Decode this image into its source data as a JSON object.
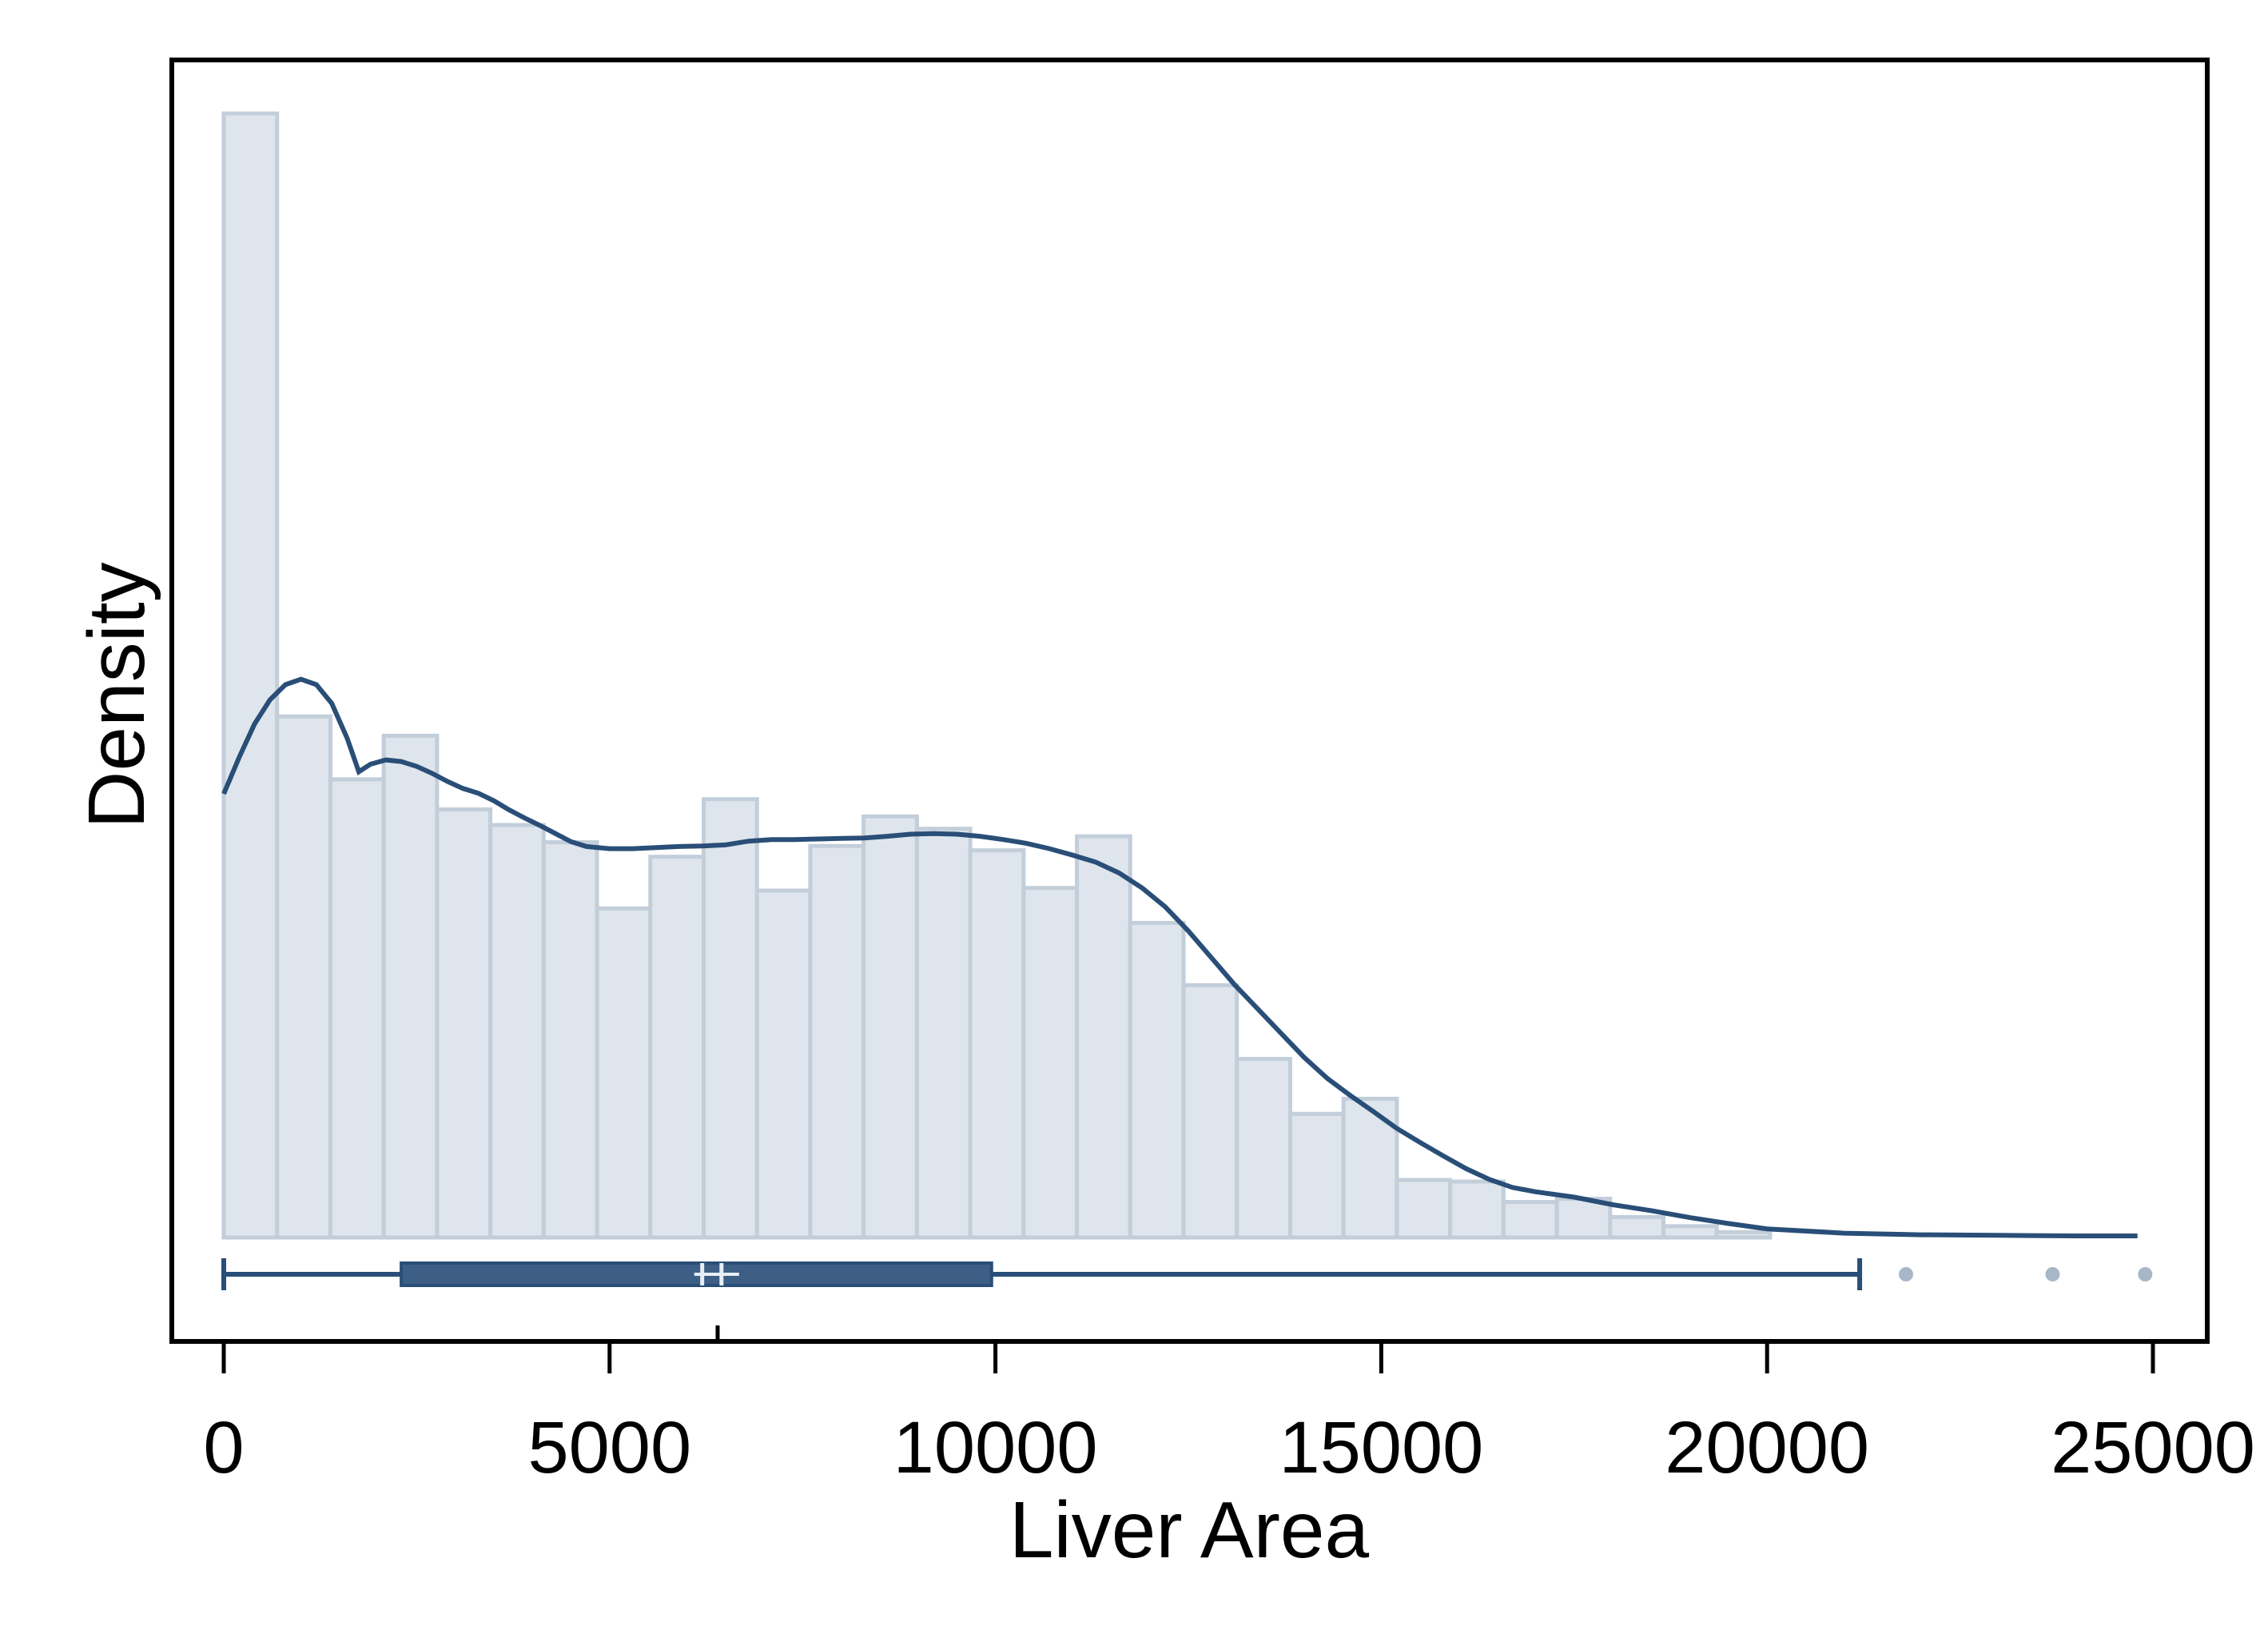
{
  "chart_data": {
    "type": "bar",
    "subtype": "histogram-with-density-and-boxplot",
    "xlabel": "Liver Area",
    "ylabel": "Density",
    "xlim": [
      0,
      25000
    ],
    "x_ticks": [
      0,
      5000,
      10000,
      15000,
      20000,
      25000
    ],
    "x_tick_labels": [
      "0",
      "5000",
      "10000",
      "15000",
      "20000",
      "25000"
    ],
    "y_ticks_shown": false,
    "grid": false,
    "bin_width": 691,
    "bins": [
      {
        "start": 0,
        "end": 691,
        "density": 0.000209
      },
      {
        "start": 691,
        "end": 1382,
        "density": 9.69e-05
      },
      {
        "start": 1382,
        "end": 2073,
        "density": 8.52e-05
      },
      {
        "start": 2073,
        "end": 2764,
        "density": 9.33e-05
      },
      {
        "start": 2764,
        "end": 3455,
        "density": 7.96e-05
      },
      {
        "start": 3455,
        "end": 4146,
        "density": 7.67e-05
      },
      {
        "start": 4146,
        "end": 4837,
        "density": 7.35e-05
      },
      {
        "start": 4837,
        "end": 5528,
        "density": 6.12e-05
      },
      {
        "start": 5528,
        "end": 6219,
        "density": 7.08e-05
      },
      {
        "start": 6219,
        "end": 6910,
        "density": 8.15e-05
      },
      {
        "start": 6910,
        "end": 7601,
        "density": 6.45e-05
      },
      {
        "start": 7601,
        "end": 7601,
        "density": 0
      },
      {
        "start": 7601,
        "end": 8292,
        "density": 7.28e-05
      },
      {
        "start": 8292,
        "end": 8983,
        "density": 7.83e-05
      },
      {
        "start": 8983,
        "end": 9674,
        "density": 7.6e-05
      },
      {
        "start": 9674,
        "end": 10365,
        "density": 7.2e-05
      },
      {
        "start": 10365,
        "end": 11056,
        "density": 6.5e-05
      },
      {
        "start": 11056,
        "end": 11747,
        "density": 7.46e-05
      },
      {
        "start": 11747,
        "end": 12438,
        "density": 5.85e-05
      },
      {
        "start": 12438,
        "end": 13129,
        "density": 4.69e-05
      },
      {
        "start": 13129,
        "end": 13820,
        "density": 3.32e-05
      },
      {
        "start": 13820,
        "end": 14511,
        "density": 2.3e-05
      },
      {
        "start": 14511,
        "end": 15202,
        "density": 2.58e-05
      },
      {
        "start": 15202,
        "end": 15893,
        "density": 1.07e-05
      },
      {
        "start": 15893,
        "end": 16584,
        "density": 1.04e-05
      },
      {
        "start": 16584,
        "end": 17275,
        "density": 6.6e-06
      },
      {
        "start": 17275,
        "end": 17966,
        "density": 7.2e-06
      },
      {
        "start": 17966,
        "end": 18657,
        "density": 3.8e-06
      },
      {
        "start": 18657,
        "end": 19348,
        "density": 2.1e-06
      },
      {
        "start": 19348,
        "end": 20039,
        "density": 1e-06
      }
    ],
    "density_curve": {
      "x": [
        0,
        200,
        400,
        600,
        800,
        1000,
        1200,
        1400,
        1600,
        1750,
        1900,
        2100,
        2300,
        2500,
        2700,
        2900,
        3100,
        3300,
        3500,
        3700,
        3900,
        4100,
        4300,
        4500,
        4700,
        5000,
        5300,
        5600,
        5900,
        6200,
        6500,
        6800,
        7100,
        7400,
        7700,
        8000,
        8300,
        8600,
        8900,
        9200,
        9500,
        9800,
        10100,
        10400,
        10700,
        11000,
        11300,
        11600,
        11900,
        12200,
        12500,
        12800,
        13100,
        13400,
        13700,
        14000,
        14300,
        14600,
        14900,
        15200,
        15500,
        15800,
        16100,
        16400,
        16700,
        17000,
        17500,
        18000,
        18500,
        19000,
        19500,
        20000,
        21000,
        22000,
        23000,
        24000,
        24800
      ],
      "y": [
        8.25e-05,
        8.93e-05,
        9.55e-05,
        0.0001,
        0.0001028,
        0.0001038,
        0.0001028,
        9.93e-05,
        9.28e-05,
        8.66e-05,
        8.8e-05,
        8.88e-05,
        8.85e-05,
        8.76e-05,
        8.63e-05,
        8.48e-05,
        8.35e-05,
        8.26e-05,
        8.12e-05,
        7.95e-05,
        7.8e-05,
        7.66e-05,
        7.51e-05,
        7.36e-05,
        7.27e-05,
        7.23e-05,
        7.23e-05,
        7.25e-05,
        7.27e-05,
        7.28e-05,
        7.3e-05,
        7.37e-05,
        7.4e-05,
        7.4e-05,
        7.41e-05,
        7.42e-05,
        7.43e-05,
        7.46e-05,
        7.5e-05,
        7.51e-05,
        7.5e-05,
        7.46e-05,
        7.4e-05,
        7.33e-05,
        7.23e-05,
        7.11e-05,
        6.98e-05,
        6.78e-05,
        6.5e-05,
        6.15e-05,
        5.7e-05,
        5.2e-05,
        4.7e-05,
        4.25e-05,
        3.8e-05,
        3.35e-05,
        2.96e-05,
        2.64e-05,
        2.34e-05,
        2.03e-05,
        1.77e-05,
        1.52e-05,
        1.28e-05,
        1.08e-05,
        9.3e-06,
        8.5e-06,
        7.5e-06,
        6.1e-06,
        5e-06,
        3.7e-06,
        2.6e-06,
        1.6e-06,
        8e-07,
        5e-07,
        4e-07,
        3e-07,
        3e-07
      ]
    },
    "boxplot": {
      "whisker_low": 0,
      "q1": 2300,
      "median": 6200,
      "mean": 6450,
      "q3": 9950,
      "whisker_high": 21200,
      "outliers": [
        21800,
        23700,
        24900
      ],
      "marker_tick": 6400
    },
    "colors": {
      "bar_fill": "#dee5ec",
      "bar_stroke": "#c2ced9",
      "curve": "#294e77",
      "box_fill": "#3d5f86",
      "box_stroke": "#294e77",
      "outlier": "#a7b7c7",
      "axis": "#000000"
    }
  }
}
